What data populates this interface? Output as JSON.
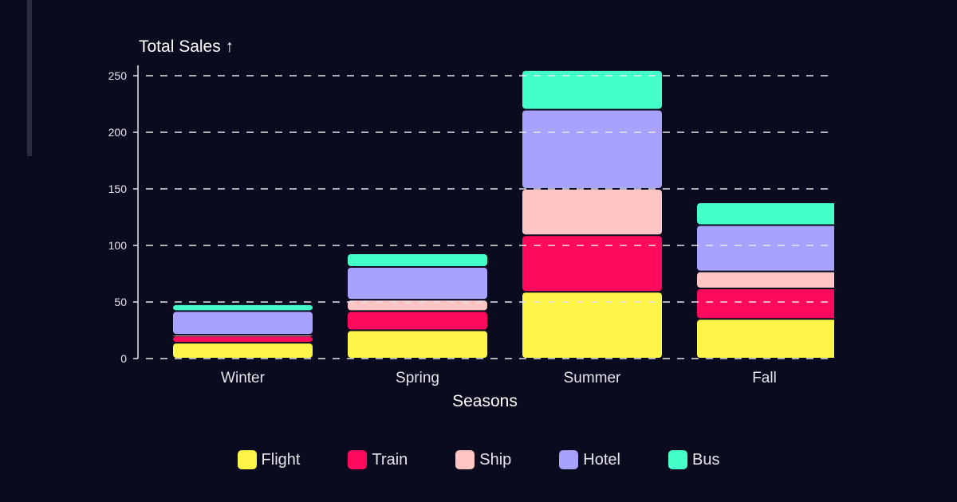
{
  "chart_data": {
    "type": "bar",
    "stacked": true,
    "title": "Total Sales ↑",
    "xlabel": "Seasons",
    "ylabel": "Total Sales ↑",
    "ylim": [
      0,
      250
    ],
    "yticks": [
      0,
      50,
      100,
      150,
      200,
      250
    ],
    "grid": "horizontal-dashed",
    "legend_position": "bottom",
    "categories": [
      "Winter",
      "Spring",
      "Summer",
      "Fall"
    ],
    "series": [
      {
        "name": "Flight",
        "color": "#fff548",
        "values": [
          14,
          25,
          59,
          35
        ]
      },
      {
        "name": "Train",
        "color": "#ff0a5c",
        "values": [
          6,
          17,
          50,
          27
        ]
      },
      {
        "name": "Ship",
        "color": "#ffc4c4",
        "values": [
          1,
          10,
          41,
          15
        ]
      },
      {
        "name": "Hotel",
        "color": "#a8a2ff",
        "values": [
          21,
          29,
          70,
          41
        ]
      },
      {
        "name": "Bus",
        "color": "#45ffc8",
        "values": [
          6,
          12,
          35,
          20
        ]
      }
    ]
  }
}
